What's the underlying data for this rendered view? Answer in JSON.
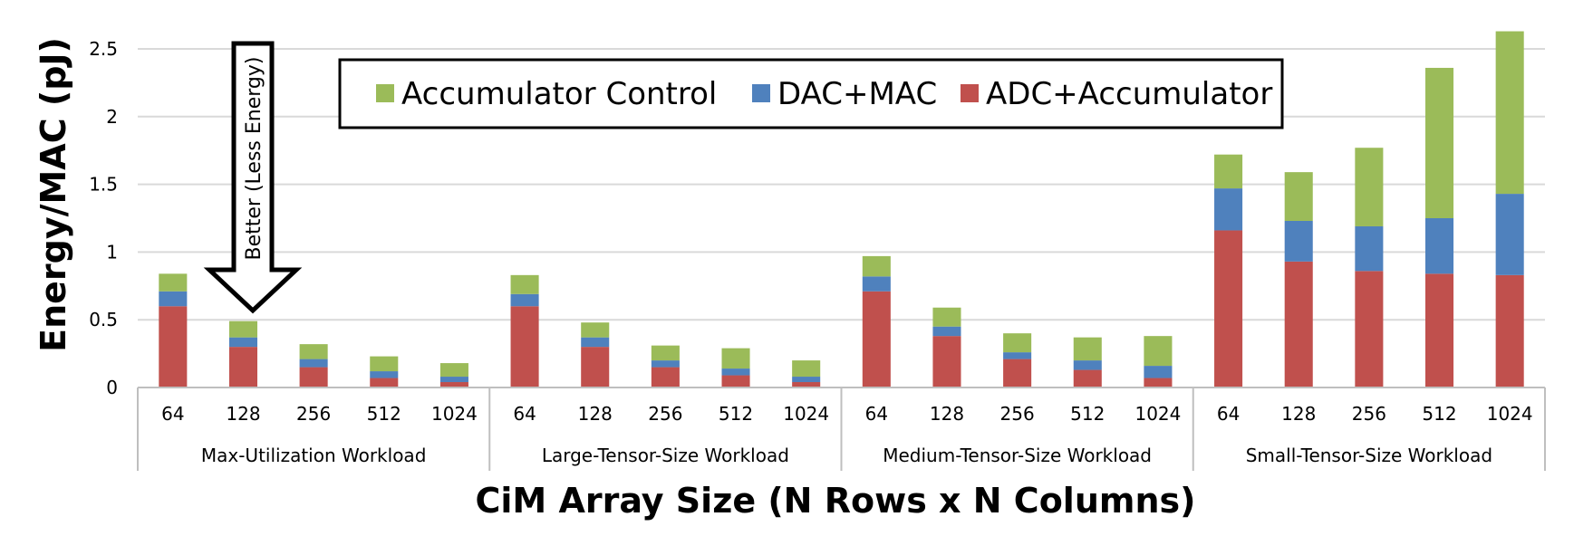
{
  "chart_data": {
    "type": "bar",
    "stacked": true,
    "ylabel": "Energy/MAC (pJ)",
    "xlabel": "CiM Array Size (N Rows x N Columns)",
    "ylim": [
      0,
      2.5
    ],
    "yticks": [
      0,
      0.5,
      1,
      1.5,
      2,
      2.5
    ],
    "ytick_labels": [
      "0",
      "0.5",
      "1",
      "1.5",
      "2",
      "2.5"
    ],
    "grid": true,
    "legend_position": "top-center",
    "annotation": "Better (Less Energy)",
    "groups": [
      {
        "label": "Max-Utilization Workload",
        "categories": [
          "64",
          "128",
          "256",
          "512",
          "1024"
        ]
      },
      {
        "label": "Large-Tensor-Size Workload",
        "categories": [
          "64",
          "128",
          "256",
          "512",
          "1024"
        ]
      },
      {
        "label": "Medium-Tensor-Size Workload",
        "categories": [
          "64",
          "128",
          "256",
          "512",
          "1024"
        ]
      },
      {
        "label": "Small-Tensor-Size Workload",
        "categories": [
          "64",
          "128",
          "256",
          "512",
          "1024"
        ]
      }
    ],
    "series": [
      {
        "name": "ADC+Accumulator",
        "color": "#c0504d",
        "values": [
          0.6,
          0.3,
          0.15,
          0.07,
          0.04,
          0.6,
          0.3,
          0.15,
          0.09,
          0.04,
          0.71,
          0.38,
          0.21,
          0.13,
          0.07,
          1.16,
          0.93,
          0.86,
          0.84,
          0.83
        ]
      },
      {
        "name": "DAC+MAC",
        "color": "#4f81bd",
        "values": [
          0.11,
          0.07,
          0.06,
          0.05,
          0.04,
          0.09,
          0.07,
          0.05,
          0.05,
          0.04,
          0.11,
          0.07,
          0.05,
          0.07,
          0.09,
          0.31,
          0.3,
          0.33,
          0.41,
          0.6
        ]
      },
      {
        "name": "Accumulator Control",
        "color": "#9bbb59",
        "values": [
          0.13,
          0.12,
          0.11,
          0.11,
          0.1,
          0.14,
          0.11,
          0.11,
          0.15,
          0.12,
          0.15,
          0.14,
          0.14,
          0.17,
          0.22,
          0.25,
          0.36,
          0.58,
          1.11,
          1.2
        ]
      }
    ],
    "legend_order": [
      "Accumulator Control",
      "DAC+MAC",
      "ADC+Accumulator"
    ]
  }
}
